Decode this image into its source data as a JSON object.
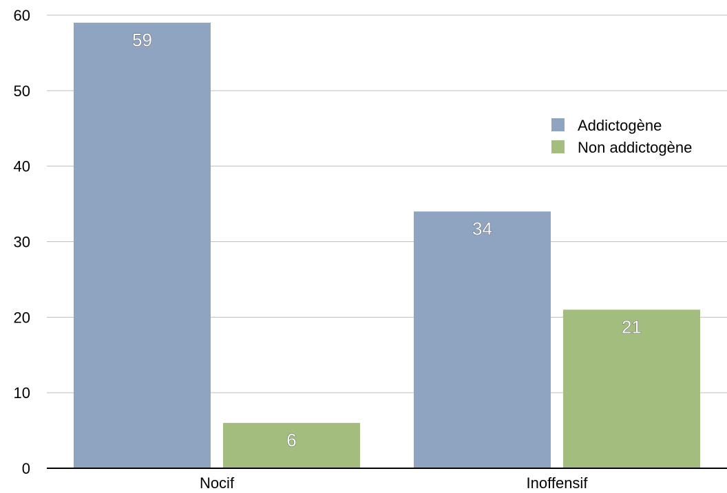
{
  "chart_data": {
    "type": "bar",
    "categories": [
      "Nocif",
      "Inoffensif"
    ],
    "series": [
      {
        "name": "Addictogène",
        "values": [
          59,
          34
        ],
        "color": "#8ea4c0"
      },
      {
        "name": "Non addictogène",
        "values": [
          6,
          21
        ],
        "color": "#a3bd7e"
      }
    ],
    "ylim": [
      0,
      60
    ],
    "yticks": [
      0,
      10,
      20,
      30,
      40,
      50,
      60
    ],
    "grid": true,
    "legend_position": "right",
    "data_labels": true
  }
}
